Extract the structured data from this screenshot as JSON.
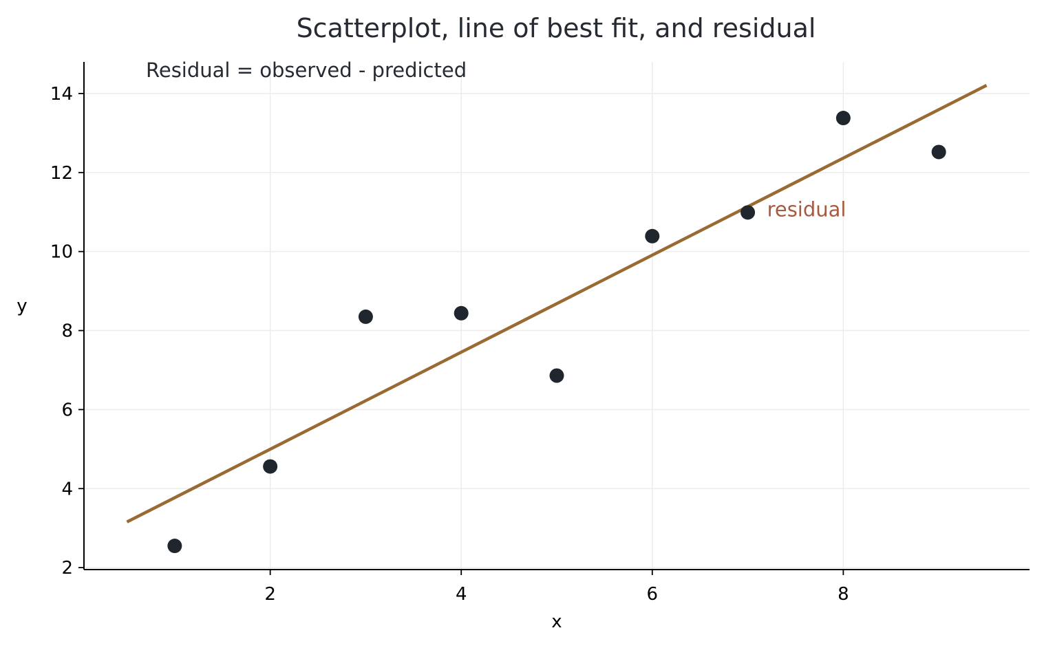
{
  "chart_data": {
    "type": "scatter",
    "title": "Scatterplot, line of best fit, and residual",
    "annotation": "Residual = observed - predicted",
    "xlabel": "x",
    "ylabel": "y",
    "xlim": [
      0.05,
      9.95
    ],
    "ylim": [
      1.95,
      14.8
    ],
    "xticks": [
      2,
      4,
      6,
      8
    ],
    "yticks": [
      2,
      4,
      6,
      8,
      10,
      12,
      14
    ],
    "grid": true,
    "points": [
      {
        "x": 1,
        "y": 2.55
      },
      {
        "x": 2,
        "y": 4.56
      },
      {
        "x": 3,
        "y": 8.35
      },
      {
        "x": 4,
        "y": 8.44
      },
      {
        "x": 5,
        "y": 6.86
      },
      {
        "x": 6,
        "y": 10.39
      },
      {
        "x": 7,
        "y": 10.99
      },
      {
        "x": 8,
        "y": 13.38
      },
      {
        "x": 9,
        "y": 12.52
      }
    ],
    "fit_line": {
      "slope": 1.228,
      "intercept": 2.541,
      "x_range": [
        0.5,
        9.5
      ]
    },
    "residual": {
      "x": 7,
      "observed": 10.99,
      "predicted": 11.14,
      "label": "residual"
    },
    "colors": {
      "points": "#1f262e",
      "fit_line": "#9a6a33",
      "residual": "#a85a40",
      "grid": "#ececec",
      "axes": "#000000",
      "text": "#262a33"
    }
  }
}
